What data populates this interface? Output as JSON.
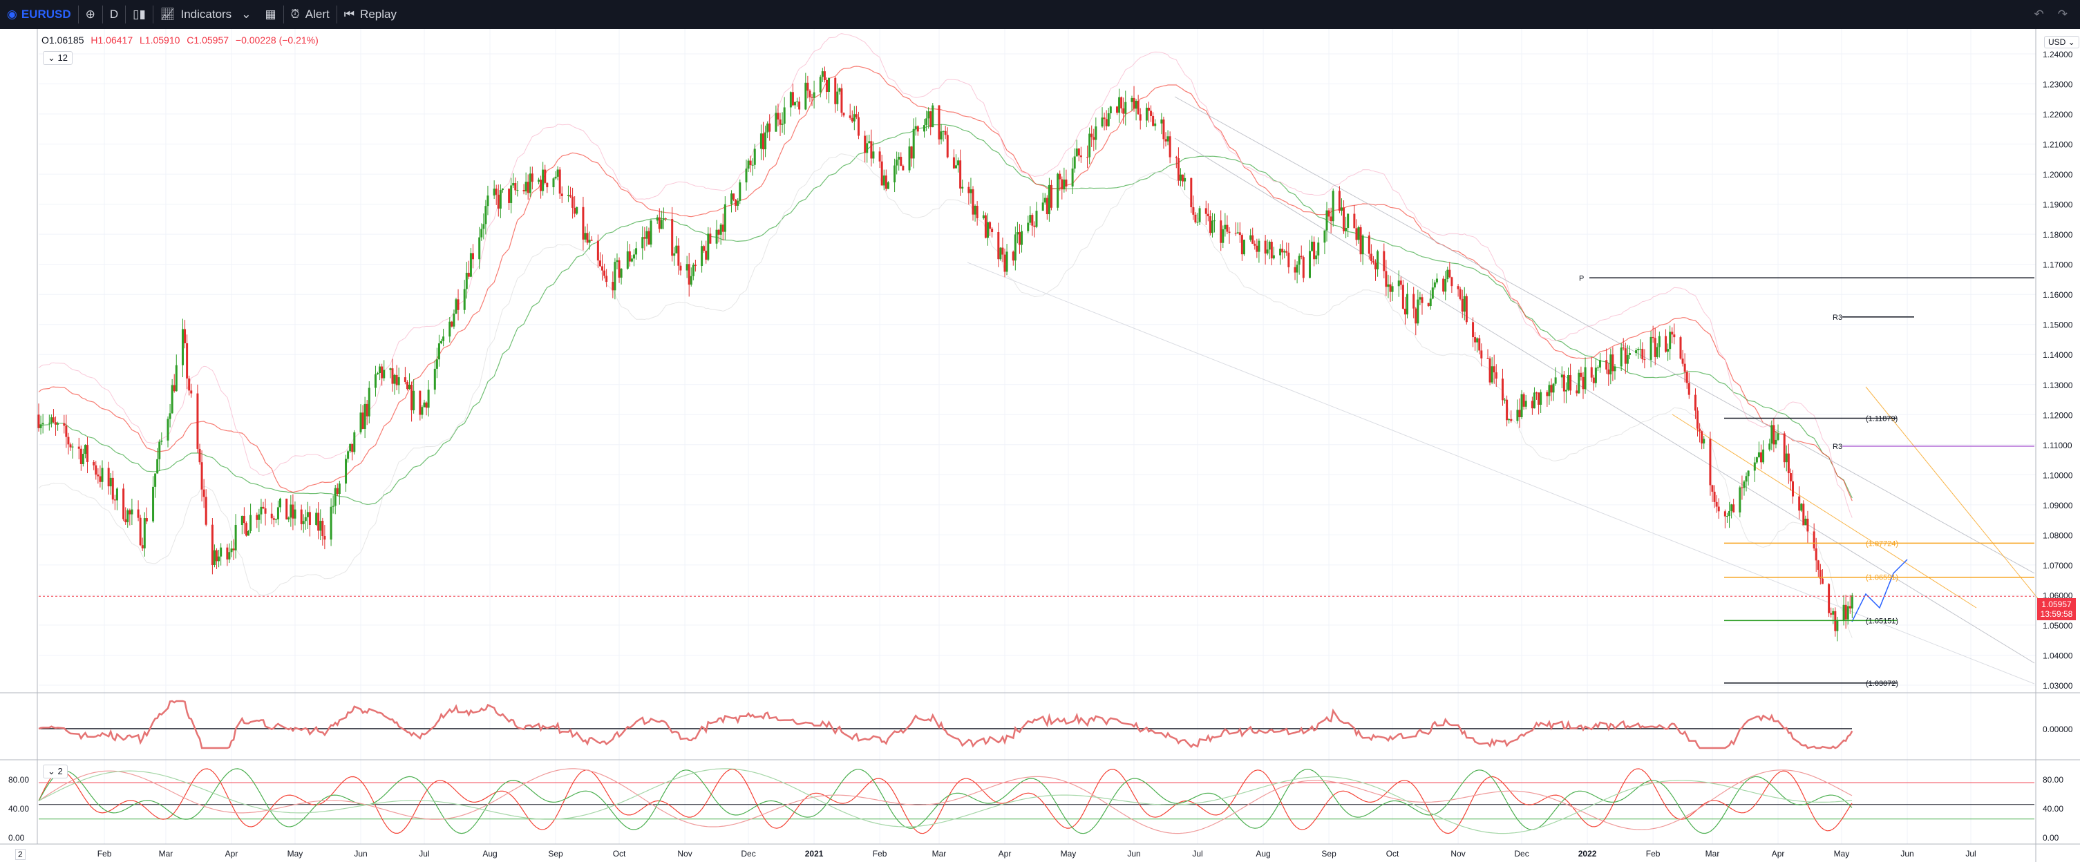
{
  "toolbar": {
    "symbol": "EURUSD",
    "interval": "D",
    "indicators_label": "Indicators",
    "alert_label": "Alert",
    "replay_label": "Replay"
  },
  "legend": {
    "open": "O1.06185",
    "high": "H1.06417",
    "low": "L1.05910",
    "close": "C1.05957",
    "change": "−0.00228 (−0.21%)",
    "indicator_count_1": "12",
    "indicator_count_2": "2"
  },
  "currency_button": "USD",
  "last_price_tag": {
    "price": "1.05957",
    "countdown": "13:59:58"
  },
  "bottom_corner_label": "2",
  "colors": {
    "up": "#089981",
    "green": "#2e9e27",
    "down": "#e12b2b",
    "orange": "#f7a21b",
    "purple": "#b36bd6",
    "blue": "#2962ff"
  },
  "chart_data": {
    "type": "candlestick",
    "price_axis": {
      "ylim": [
        1.03,
        1.24
      ],
      "ticks": [
        "1.24000",
        "1.23000",
        "1.22000",
        "1.21000",
        "1.20000",
        "1.19000",
        "1.18000",
        "1.17000",
        "1.16000",
        "1.15000",
        "1.14000",
        "1.13000",
        "1.12000",
        "1.11000",
        "1.10000",
        "1.09000",
        "1.08000",
        "1.07000",
        "1.06000",
        "1.05000",
        "1.04000",
        "1.03000"
      ]
    },
    "x_axis": {
      "range": [
        "2020-01-01",
        "2022-07-31"
      ],
      "ticks": [
        {
          "label": "Feb",
          "date": "2020-02-01"
        },
        {
          "label": "Mar",
          "date": "2020-03-01"
        },
        {
          "label": "Apr",
          "date": "2020-04-01"
        },
        {
          "label": "May",
          "date": "2020-05-01"
        },
        {
          "label": "Jun",
          "date": "2020-06-01"
        },
        {
          "label": "Jul",
          "date": "2020-07-01"
        },
        {
          "label": "Aug",
          "date": "2020-08-01"
        },
        {
          "label": "Sep",
          "date": "2020-09-01"
        },
        {
          "label": "Oct",
          "date": "2020-10-01"
        },
        {
          "label": "Nov",
          "date": "2020-11-01"
        },
        {
          "label": "Dec",
          "date": "2020-12-01"
        },
        {
          "label": "2021",
          "date": "2021-01-01"
        },
        {
          "label": "Feb",
          "date": "2021-02-01"
        },
        {
          "label": "Mar",
          "date": "2021-03-01"
        },
        {
          "label": "Apr",
          "date": "2021-04-01"
        },
        {
          "label": "May",
          "date": "2021-05-01"
        },
        {
          "label": "Jun",
          "date": "2021-06-01"
        },
        {
          "label": "Jul",
          "date": "2021-07-01"
        },
        {
          "label": "Aug",
          "date": "2021-08-01"
        },
        {
          "label": "Sep",
          "date": "2021-09-01"
        },
        {
          "label": "Oct",
          "date": "2021-10-01"
        },
        {
          "label": "Nov",
          "date": "2021-11-01"
        },
        {
          "label": "Dec",
          "date": "2021-12-01"
        },
        {
          "label": "2022",
          "date": "2022-01-01"
        },
        {
          "label": "Feb",
          "date": "2022-02-01"
        },
        {
          "label": "Mar",
          "date": "2022-03-01"
        },
        {
          "label": "Apr",
          "date": "2022-04-01"
        },
        {
          "label": "May",
          "date": "2022-05-01"
        },
        {
          "label": "Jun",
          "date": "2022-06-01"
        },
        {
          "label": "Jul",
          "date": "2022-07-01"
        }
      ]
    },
    "price_path": [
      {
        "date": "2020-01-01",
        "close": 1.12
      },
      {
        "date": "2020-01-25",
        "close": 1.105
      },
      {
        "date": "2020-02-19",
        "close": 1.08
      },
      {
        "date": "2020-03-09",
        "close": 1.145
      },
      {
        "date": "2020-03-23",
        "close": 1.07
      },
      {
        "date": "2020-04-15",
        "close": 1.09
      },
      {
        "date": "2020-05-15",
        "close": 1.082
      },
      {
        "date": "2020-06-10",
        "close": 1.135
      },
      {
        "date": "2020-06-30",
        "close": 1.122
      },
      {
        "date": "2020-07-31",
        "close": 1.19
      },
      {
        "date": "2020-09-01",
        "close": 1.2
      },
      {
        "date": "2020-09-25",
        "close": 1.163
      },
      {
        "date": "2020-10-20",
        "close": 1.185
      },
      {
        "date": "2020-11-04",
        "close": 1.165
      },
      {
        "date": "2020-12-15",
        "close": 1.22
      },
      {
        "date": "2021-01-06",
        "close": 1.233
      },
      {
        "date": "2021-02-05",
        "close": 1.197
      },
      {
        "date": "2021-02-25",
        "close": 1.22
      },
      {
        "date": "2021-03-31",
        "close": 1.17
      },
      {
        "date": "2021-05-25",
        "close": 1.225
      },
      {
        "date": "2021-06-15",
        "close": 1.215
      },
      {
        "date": "2021-06-30",
        "close": 1.185
      },
      {
        "date": "2021-08-20",
        "close": 1.168
      },
      {
        "date": "2021-09-03",
        "close": 1.19
      },
      {
        "date": "2021-10-12",
        "close": 1.153
      },
      {
        "date": "2021-10-28",
        "close": 1.168
      },
      {
        "date": "2021-11-24",
        "close": 1.12
      },
      {
        "date": "2021-12-31",
        "close": 1.133
      },
      {
        "date": "2022-02-10",
        "close": 1.145
      },
      {
        "date": "2022-03-07",
        "close": 1.083
      },
      {
        "date": "2022-03-31",
        "close": 1.115
      },
      {
        "date": "2022-04-28",
        "close": 1.05
      },
      {
        "date": "2022-05-06",
        "close": 1.0596
      }
    ],
    "horizontal_levels": [
      {
        "label": "P",
        "price": 1.1655,
        "color": "#131722"
      },
      {
        "label": "R3",
        "price": 1.1525,
        "color": "#131722"
      },
      {
        "label": "(1.11879)",
        "price": 1.11879,
        "color": "#131722"
      },
      {
        "label": "R3",
        "price": 1.1095,
        "color": "#b36bd6"
      },
      {
        "label": "(1.07724)",
        "price": 1.07724,
        "color": "#f7a21b"
      },
      {
        "label": "(1.06591)",
        "price": 1.06591,
        "color": "#f7a21b"
      },
      {
        "label": "(1.05151)",
        "price": 1.05151,
        "color": "#2e9e27"
      },
      {
        "label": "(1.03072)",
        "price": 1.03072,
        "color": "#131722"
      }
    ],
    "oscillator_1": {
      "ticks": [
        "0.00000"
      ],
      "zero_line": 0
    },
    "oscillator_2": {
      "ticks": [
        "80.00",
        "40.00",
        "0.00"
      ],
      "ylim": [
        0,
        100
      ],
      "bands": [
        75,
        45,
        25
      ]
    }
  }
}
